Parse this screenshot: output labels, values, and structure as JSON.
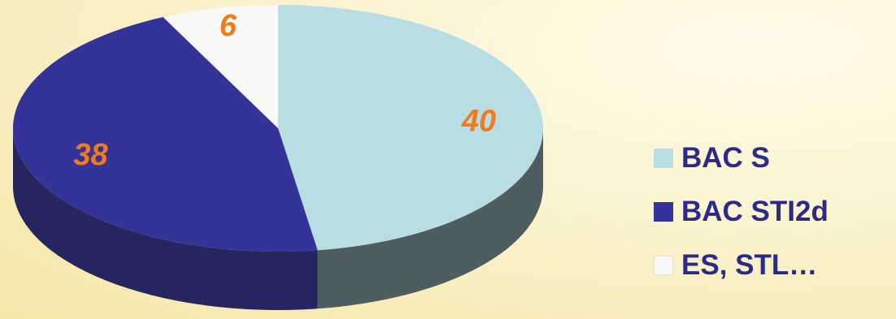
{
  "chart_data": {
    "type": "pie",
    "style": "3d",
    "categories": [
      "BAC S",
      "BAC STI2d",
      "ES, STL…"
    ],
    "values": [
      40,
      38,
      6
    ],
    "data_labels": [
      "40",
      "38",
      "6"
    ],
    "colors": [
      "#b8dde3",
      "#333399",
      "#f8f8f6"
    ],
    "side_colors": [
      "#4e5d5f",
      "#25255f",
      "#d8d6c8"
    ],
    "label_color": "#f07a1e",
    "legend_position": "right",
    "title": ""
  }
}
